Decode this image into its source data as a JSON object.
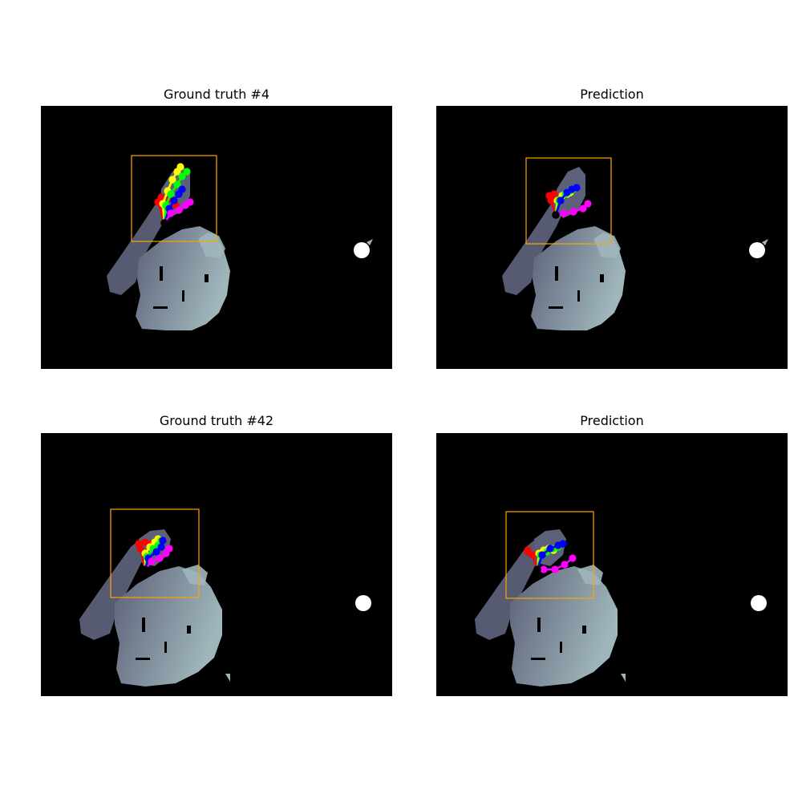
{
  "panels": [
    {
      "title": "Ground truth #4",
      "kind": "ground-truth",
      "sample": 1
    },
    {
      "title": "Prediction",
      "kind": "prediction",
      "sample": 1
    },
    {
      "title": "Ground truth #42",
      "kind": "ground-truth",
      "sample": 2
    },
    {
      "title": "Prediction",
      "kind": "prediction",
      "sample": 2
    }
  ],
  "colors": {
    "background": "#000000",
    "bounding_box": "#ffa500",
    "depth_near": "#5c6078",
    "depth_far": "#9fb6bb",
    "thumb": "#ff0000",
    "index": "#ffff00",
    "middle": "#00ff00",
    "ring": "#0000ff",
    "pinky": "#ff00ff",
    "wrist": "#000000",
    "marker": "#ffffff"
  },
  "finger_order": [
    "thumb",
    "index",
    "middle",
    "ring",
    "pinky"
  ]
}
